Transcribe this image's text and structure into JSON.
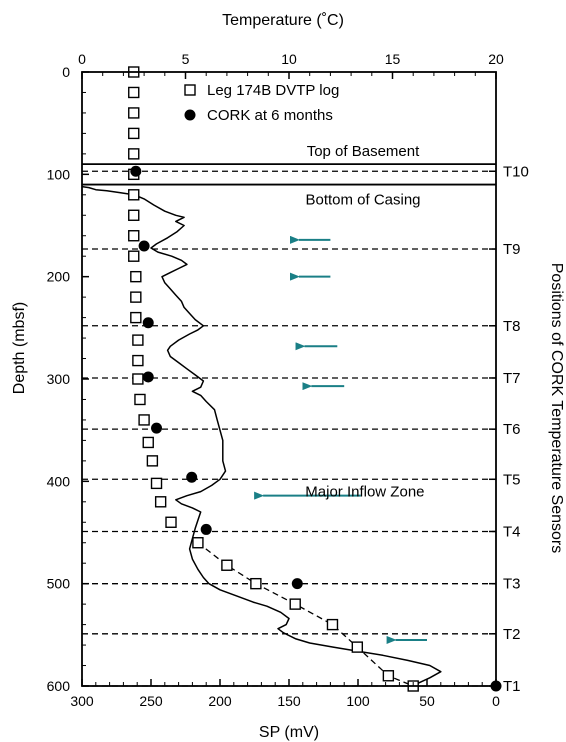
{
  "chart_data": {
    "type": "line",
    "top_axis": {
      "label": "Temperature (˚C)",
      "range": [
        0,
        20
      ],
      "ticks": [
        0,
        5,
        10,
        15,
        20
      ]
    },
    "bottom_axis": {
      "label": "SP (mV)",
      "range": [
        300,
        0
      ],
      "ticks": [
        300,
        250,
        200,
        150,
        100,
        50,
        0
      ]
    },
    "left_axis": {
      "label": "Depth (mbsf)",
      "range": [
        0,
        600
      ],
      "inverted": true,
      "ticks": [
        0,
        100,
        200,
        300,
        400,
        500,
        600
      ]
    },
    "right_axis": {
      "label": "Positions of CORK Temperature Sensors"
    },
    "legend": {
      "placement": "top-center",
      "entries": [
        {
          "label": "Leg 174B DVTP log",
          "marker": "open-square"
        },
        {
          "label": "CORK at 6 months",
          "marker": "filled-circle"
        }
      ]
    },
    "series": [
      {
        "name": "Leg 174B DVTP log",
        "axis": "temperature",
        "marker": "open-square",
        "points": [
          [
            2.5,
            0
          ],
          [
            2.5,
            20
          ],
          [
            2.5,
            40
          ],
          [
            2.5,
            60
          ],
          [
            2.5,
            80
          ],
          [
            2.5,
            100
          ],
          [
            2.5,
            120
          ],
          [
            2.5,
            140
          ],
          [
            2.5,
            160
          ],
          [
            2.5,
            180
          ],
          [
            2.6,
            200
          ],
          [
            2.6,
            220
          ],
          [
            2.6,
            240
          ],
          [
            2.7,
            262
          ],
          [
            2.7,
            282
          ],
          [
            2.7,
            300
          ],
          [
            2.8,
            320
          ],
          [
            3.0,
            340
          ],
          [
            3.2,
            362
          ],
          [
            3.4,
            380
          ],
          [
            3.6,
            402
          ],
          [
            3.8,
            420
          ],
          [
            4.3,
            440
          ],
          [
            5.6,
            460
          ],
          [
            7.0,
            482
          ],
          [
            8.4,
            500
          ],
          [
            10.3,
            520
          ],
          [
            12.1,
            540
          ],
          [
            13.3,
            562
          ],
          [
            14.8,
            590
          ],
          [
            16.0,
            600
          ]
        ]
      },
      {
        "name": "CORK at 6 months",
        "axis": "temperature",
        "marker": "filled-circle",
        "points": [
          [
            2.6,
            97
          ],
          [
            3.0,
            170
          ],
          [
            3.2,
            245
          ],
          [
            3.2,
            298
          ],
          [
            3.6,
            348
          ],
          [
            5.3,
            396
          ],
          [
            6.0,
            447
          ],
          [
            10.4,
            500
          ],
          [
            20.0,
            600
          ]
        ]
      },
      {
        "name": "SP",
        "axis": "sp",
        "marker": "line",
        "points": [
          [
            300,
            112
          ],
          [
            295,
            113
          ],
          [
            290,
            115
          ],
          [
            282,
            116
          ],
          [
            272,
            118
          ],
          [
            262,
            120
          ],
          [
            255,
            124
          ],
          [
            248,
            130
          ],
          [
            240,
            136
          ],
          [
            232,
            140
          ],
          [
            226,
            142
          ],
          [
            232,
            146
          ],
          [
            226,
            150
          ],
          [
            231,
            156
          ],
          [
            238,
            162
          ],
          [
            246,
            168
          ],
          [
            250,
            172
          ],
          [
            245,
            176
          ],
          [
            235,
            180
          ],
          [
            228,
            184
          ],
          [
            224,
            188
          ],
          [
            230,
            192
          ],
          [
            236,
            196
          ],
          [
            242,
            200
          ],
          [
            240,
            206
          ],
          [
            236,
            212
          ],
          [
            232,
            218
          ],
          [
            228,
            224
          ],
          [
            226,
            230
          ],
          [
            222,
            236
          ],
          [
            218,
            242
          ],
          [
            212,
            248
          ],
          [
            216,
            252
          ],
          [
            222,
            256
          ],
          [
            230,
            262
          ],
          [
            236,
            268
          ],
          [
            238,
            272
          ],
          [
            236,
            278
          ],
          [
            230,
            284
          ],
          [
            224,
            290
          ],
          [
            218,
            296
          ],
          [
            212,
            302
          ],
          [
            214,
            308
          ],
          [
            220,
            312
          ],
          [
            214,
            316
          ],
          [
            210,
            322
          ],
          [
            204,
            330
          ],
          [
            202,
            340
          ],
          [
            200,
            350
          ],
          [
            198,
            360
          ],
          [
            198,
            370
          ],
          [
            198,
            380
          ],
          [
            196,
            390
          ],
          [
            200,
            398
          ],
          [
            206,
            404
          ],
          [
            214,
            410
          ],
          [
            224,
            414
          ],
          [
            232,
            418
          ],
          [
            228,
            422
          ],
          [
            220,
            426
          ],
          [
            214,
            430
          ],
          [
            216,
            438
          ],
          [
            218,
            446
          ],
          [
            220,
            456
          ],
          [
            222,
            466
          ],
          [
            220,
            476
          ],
          [
            216,
            486
          ],
          [
            212,
            494
          ],
          [
            208,
            500
          ],
          [
            200,
            506
          ],
          [
            188,
            512
          ],
          [
            176,
            518
          ],
          [
            166,
            522
          ],
          [
            156,
            528
          ],
          [
            150,
            534
          ],
          [
            152,
            540
          ],
          [
            158,
            544
          ],
          [
            154,
            548
          ],
          [
            145,
            554
          ],
          [
            135,
            558
          ],
          [
            118,
            562
          ],
          [
            100,
            566
          ],
          [
            82,
            570
          ],
          [
            64,
            575
          ],
          [
            48,
            580
          ],
          [
            40,
            586
          ],
          [
            48,
            592
          ],
          [
            56,
            597
          ],
          [
            62,
            600
          ]
        ]
      }
    ],
    "horizontal_lines": [
      {
        "depth": 90,
        "style": "solid",
        "label": "Top of Basement"
      },
      {
        "depth": 110,
        "style": "solid",
        "label": "Bottom of Casing"
      },
      {
        "depth": 97,
        "style": "dashed",
        "label": "T10"
      },
      {
        "depth": 173,
        "style": "dashed",
        "label": "T9"
      },
      {
        "depth": 248,
        "style": "dashed",
        "label": "T8"
      },
      {
        "depth": 299,
        "style": "dashed",
        "label": "T7"
      },
      {
        "depth": 349,
        "style": "dashed",
        "label": "T6"
      },
      {
        "depth": 398,
        "style": "dashed",
        "label": "T5"
      },
      {
        "depth": 449,
        "style": "dashed",
        "label": "T4"
      },
      {
        "depth": 500,
        "style": "dashed",
        "label": "T3"
      },
      {
        "depth": 549,
        "style": "dashed",
        "label": "T2"
      },
      {
        "depth": 600,
        "style": "dashed",
        "label": "T1"
      }
    ],
    "arrows": [
      {
        "from_sp": 120,
        "to_sp": 150,
        "depth": 164
      },
      {
        "from_sp": 120,
        "to_sp": 150,
        "depth": 200
      },
      {
        "from_sp": 115,
        "to_sp": 146,
        "depth": 268
      },
      {
        "from_sp": 110,
        "to_sp": 141,
        "depth": 307
      },
      {
        "from_sp": 98,
        "to_sp": 176,
        "depth": 414
      },
      {
        "from_sp": 50,
        "to_sp": 80,
        "depth": 555
      }
    ],
    "annotations": [
      {
        "text": "Major Inflow Zone",
        "sp": 95,
        "depth": 410
      }
    ],
    "colors": {
      "arrow": "#1a7f86",
      "line": "#000000"
    }
  }
}
